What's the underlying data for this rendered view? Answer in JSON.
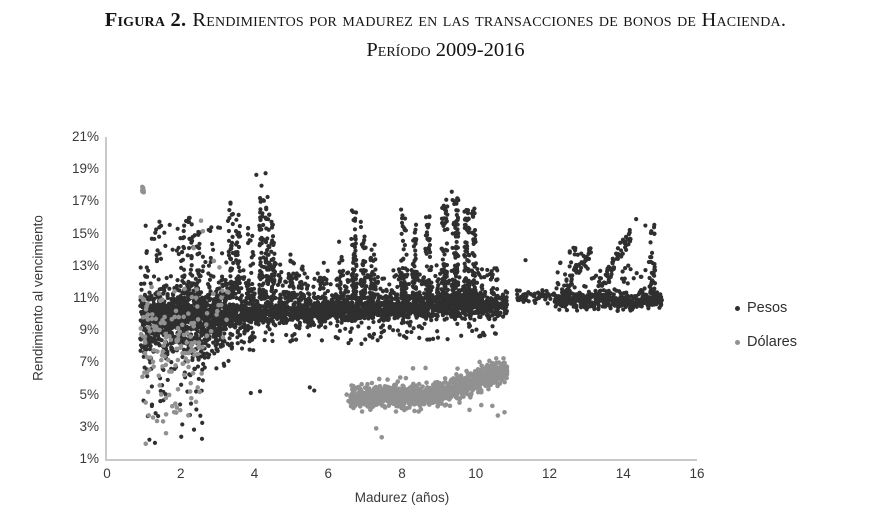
{
  "title": {
    "prefix": "Figura 2.",
    "text": "Rendimientos por madurez en las transacciones de bonos de Hacienda.",
    "subtitle": "Período 2009-2016"
  },
  "chart_data": {
    "type": "scatter",
    "title": "Figura 2. Rendimientos por madurez en las transacciones de bonos de Hacienda. Período 2009-2016",
    "xlabel": "Madurez (años)",
    "ylabel": "Rendimiento al vencimiento",
    "x_range": [
      0,
      16
    ],
    "y_range": [
      1,
      21
    ],
    "x_ticks": [
      {
        "value": 0,
        "label": "0"
      },
      {
        "value": 2,
        "label": "2"
      },
      {
        "value": 4,
        "label": "4"
      },
      {
        "value": 6,
        "label": "6"
      },
      {
        "value": 8,
        "label": "8"
      },
      {
        "value": 10,
        "label": "10"
      },
      {
        "value": 12,
        "label": "12"
      },
      {
        "value": 14,
        "label": "14"
      },
      {
        "value": 16,
        "label": "16"
      }
    ],
    "y_ticks": [
      {
        "value": 21,
        "label": "21%"
      },
      {
        "value": 19,
        "label": "19%"
      },
      {
        "value": 17,
        "label": "17%"
      },
      {
        "value": 15,
        "label": "15%"
      },
      {
        "value": 13,
        "label": "13%"
      },
      {
        "value": 11,
        "label": "11%"
      },
      {
        "value": 9,
        "label": "9%"
      },
      {
        "value": 7,
        "label": "7%"
      },
      {
        "value": 5,
        "label": "5%"
      },
      {
        "value": 3,
        "label": "3%"
      },
      {
        "value": 1,
        "label": "1%"
      }
    ],
    "grid": false,
    "legend_position": "right",
    "axis_color": "#c9c9c9",
    "series": [
      {
        "name": "Pesos",
        "color": "#2f2f2f",
        "marker_radius": 2.1,
        "clusters": [
          {
            "kind": "band",
            "x": [
              0.95,
              10.85
            ],
            "yc": [
              9.85,
              10.6
            ],
            "sd": 0.38,
            "clip": [
              8.7,
              11.9
            ],
            "n": 2500
          },
          {
            "kind": "band",
            "x": [
              0.9,
              3.2
            ],
            "yc": [
              9.6,
              9.8
            ],
            "sd": 1.35,
            "clip": [
              6.6,
              14.4
            ],
            "n": 650
          },
          {
            "kind": "box",
            "x": [
              1.0,
              3.2
            ],
            "y": [
              13.2,
              15.9
            ],
            "n": 45
          },
          {
            "kind": "band",
            "x": [
              3.2,
              10.6
            ],
            "yc": [
              11.6,
              11.8
            ],
            "sd": 0.7,
            "clip": [
              11.0,
              13.8
            ],
            "n": 420
          },
          {
            "kind": "band",
            "x": [
              1.0,
              4.0
            ],
            "yc": [
              8.3,
              8.9
            ],
            "sd": 0.55,
            "clip": [
              7.0,
              9.5
            ],
            "n": 130
          },
          {
            "kind": "box",
            "x": [
              4.0,
              10.6
            ],
            "y": [
              8.3,
              9.4
            ],
            "n": 70
          },
          {
            "kind": "box",
            "x": [
              0.95,
              2.6
            ],
            "y": [
              2.2,
              6.8
            ],
            "n": 40
          },
          {
            "kind": "streak",
            "x": 2.05,
            "xj": 0.06,
            "y": [
              11,
              14.8
            ],
            "n": 18,
            "bias": 1.8
          },
          {
            "kind": "streak",
            "x": 2.25,
            "xj": 0.08,
            "y": [
              11,
              16.3
            ],
            "n": 35,
            "bias": 1.8
          },
          {
            "kind": "streak",
            "x": 2.45,
            "xj": 0.06,
            "y": [
              11,
              15.2
            ],
            "n": 22,
            "bias": 1.8
          },
          {
            "kind": "streak",
            "x": 3.35,
            "xj": 0.07,
            "y": [
              11,
              17.2
            ],
            "n": 45,
            "bias": 1.8
          },
          {
            "kind": "streak",
            "x": 3.55,
            "xj": 0.06,
            "y": [
              11.5,
              16.2
            ],
            "n": 30,
            "bias": 1.8
          },
          {
            "kind": "streak",
            "x": 3.9,
            "xj": 0.08,
            "y": [
              11,
              15.6
            ],
            "n": 32,
            "bias": 1.8
          },
          {
            "kind": "streak",
            "x": 4.2,
            "xj": 0.07,
            "y": [
              11,
              18.0
            ],
            "n": 60,
            "bias": 1.8
          },
          {
            "kind": "streak",
            "x": 4.35,
            "xj": 0.06,
            "y": [
              12,
              17.7
            ],
            "n": 45,
            "bias": 1.8
          },
          {
            "kind": "streak",
            "x": 4.5,
            "xj": 0.05,
            "y": [
              12,
              16.1
            ],
            "n": 28,
            "bias": 1.8
          },
          {
            "kind": "streak",
            "x": 5.0,
            "xj": 0.07,
            "y": [
              11,
              13.8
            ],
            "n": 20,
            "bias": 1.8
          },
          {
            "kind": "streak",
            "x": 5.3,
            "xj": 0.06,
            "y": [
              11,
              13.2
            ],
            "n": 15,
            "bias": 1.8
          },
          {
            "kind": "streak",
            "x": 6.35,
            "xj": 0.06,
            "y": [
              11,
              14.5
            ],
            "n": 15,
            "bias": 1.8
          },
          {
            "kind": "streak",
            "x": 6.7,
            "xj": 0.08,
            "y": [
              11,
              16.5
            ],
            "n": 50,
            "bias": 1.8
          },
          {
            "kind": "streak",
            "x": 6.95,
            "xj": 0.07,
            "y": [
              11,
              15.8
            ],
            "n": 38,
            "bias": 1.8
          },
          {
            "kind": "streak",
            "x": 7.2,
            "xj": 0.06,
            "y": [
              11,
              14.8
            ],
            "n": 30,
            "bias": 1.8
          },
          {
            "kind": "streak",
            "x": 8.05,
            "xj": 0.08,
            "y": [
              11,
              16.6
            ],
            "n": 55,
            "bias": 1.8
          },
          {
            "kind": "streak",
            "x": 8.35,
            "xj": 0.07,
            "y": [
              11,
              15.7
            ],
            "n": 40,
            "bias": 1.8
          },
          {
            "kind": "streak",
            "x": 8.7,
            "xj": 0.07,
            "y": [
              11,
              16.1
            ],
            "n": 45,
            "bias": 1.8
          },
          {
            "kind": "streak",
            "x": 9.15,
            "xj": 0.08,
            "y": [
              11,
              17.2
            ],
            "n": 70,
            "bias": 1.6
          },
          {
            "kind": "streak",
            "x": 9.45,
            "xj": 0.08,
            "y": [
              11,
              17.3
            ],
            "n": 75,
            "bias": 1.6
          },
          {
            "kind": "streak",
            "x": 9.75,
            "xj": 0.08,
            "y": [
              11,
              17.0
            ],
            "n": 70,
            "bias": 1.6
          },
          {
            "kind": "streak",
            "x": 9.95,
            "xj": 0.06,
            "y": [
              11,
              16.6
            ],
            "n": 45,
            "bias": 1.6
          },
          {
            "kind": "points",
            "pts": [
              [
                4.05,
                18.65
              ],
              [
                4.3,
                18.75
              ],
              [
                9.35,
                17.6
              ],
              [
                3.9,
                5.1
              ],
              [
                4.15,
                5.2
              ],
              [
                5.5,
                5.45
              ],
              [
                5.62,
                5.25
              ],
              [
                1.15,
                2.2
              ],
              [
                1.3,
                2.0
              ],
              [
                6.55,
                8.2
              ],
              [
                6.9,
                8.15
              ],
              [
                11.35,
                13.35
              ]
            ]
          },
          {
            "kind": "band",
            "x": [
              11.1,
              12.15
            ],
            "yc": [
              11.1,
              11.1
            ],
            "sd": 0.2,
            "clip": [
              10.6,
              11.7
            ],
            "n": 55
          },
          {
            "kind": "band",
            "x": [
              12.15,
              15.05
            ],
            "yc": [
              10.9,
              10.85
            ],
            "sd": 0.27,
            "clip": [
              10.2,
              11.7
            ],
            "n": 470
          },
          {
            "kind": "diag",
            "from": [
              12.4,
              11.4
            ],
            "to": [
              13.05,
              13.9
            ],
            "xj": 0.1,
            "yj": 0.3,
            "n": 38
          },
          {
            "kind": "diag",
            "from": [
              13.35,
              11.5
            ],
            "to": [
              14.25,
              15.4
            ],
            "xj": 0.1,
            "yj": 0.3,
            "n": 55
          },
          {
            "kind": "streak",
            "x": 14.78,
            "xj": 0.07,
            "y": [
              11.2,
              15.6
            ],
            "n": 35,
            "bias": 1.2
          },
          {
            "kind": "box",
            "x": [
              12.2,
              15.0
            ],
            "y": [
              11.7,
              13.3
            ],
            "n": 40
          },
          {
            "kind": "box",
            "x": [
              12.5,
              13.2
            ],
            "y": [
              12.8,
              14.2
            ],
            "n": 14
          },
          {
            "kind": "points",
            "pts": [
              [
                14.35,
                15.9
              ],
              [
                14.6,
                15.5
              ],
              [
                12.55,
                13.9
              ],
              [
                12.7,
                14.1
              ]
            ]
          }
        ]
      },
      {
        "name": "Dólares",
        "color": "#919191",
        "marker_radius": 2.3,
        "clusters": [
          {
            "kind": "band",
            "x": [
              0.9,
              2.6
            ],
            "yc": [
              8.6,
              8.6
            ],
            "sd": 1.7,
            "clip": [
              4.0,
              13.6
            ],
            "n": 120
          },
          {
            "kind": "streak",
            "x": 0.97,
            "xj": 0.04,
            "y": [
              17.3,
              18.05
            ],
            "n": 6,
            "bias": 1.0
          },
          {
            "kind": "box",
            "x": [
              1.0,
              2.5
            ],
            "y": [
              2.8,
              6.5
            ],
            "n": 22
          },
          {
            "kind": "box",
            "x": [
              2.6,
              3.3
            ],
            "y": [
              8.5,
              11.5
            ],
            "n": 15
          },
          {
            "kind": "band",
            "x": [
              6.6,
              9.0
            ],
            "yc": [
              4.85,
              4.95
            ],
            "sd": 0.33,
            "clip": [
              3.95,
              5.95
            ],
            "n": 680
          },
          {
            "kind": "band",
            "x": [
              9.0,
              10.85
            ],
            "yc": [
              5.0,
              6.55
            ],
            "sd": 0.34,
            "clip": [
              4.1,
              7.25
            ],
            "n": 500
          },
          {
            "kind": "box",
            "x": [
              7.2,
              9.2
            ],
            "y": [
              5.9,
              6.7
            ],
            "n": 6
          },
          {
            "kind": "points",
            "pts": [
              [
                2.55,
                15.8
              ],
              [
                2.6,
                15.15
              ],
              [
                2.35,
                14.1
              ],
              [
                2.9,
                13.3
              ],
              [
                3.05,
                12.9
              ],
              [
                1.05,
                1.95
              ],
              [
                1.6,
                2.6
              ],
              [
                7.3,
                2.9
              ],
              [
                7.45,
                2.35
              ],
              [
                9.56,
                4.5
              ],
              [
                9.83,
                4.05
              ],
              [
                10.6,
                3.7
              ],
              [
                10.15,
                4.35
              ],
              [
                10.45,
                4.3
              ],
              [
                10.78,
                3.9
              ],
              [
                6.5,
                5.0
              ],
              [
                6.55,
                4.6
              ],
              [
                9.3,
                4.3
              ],
              [
                8.45,
                3.95
              ]
            ]
          }
        ]
      }
    ]
  }
}
